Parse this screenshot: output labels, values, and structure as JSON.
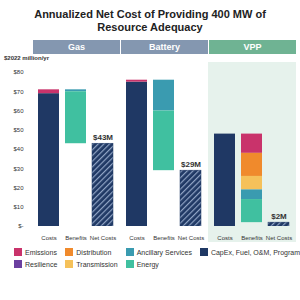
{
  "chart_data": {
    "type": "bar",
    "title": "Annualized Net Cost of Providing 400 MW of Resource Adequacy",
    "ylabel": "$2022 million/yr",
    "stacked": true,
    "panels": [
      "Gas",
      "Battery",
      "VPP"
    ],
    "categories": [
      "Costs",
      "Benefits",
      "Net Costs"
    ],
    "ylim": [
      0,
      80
    ],
    "yticks": [
      {
        "value": 0,
        "label": "$-"
      },
      {
        "value": 10,
        "label": "$10"
      },
      {
        "value": 20,
        "label": "$20"
      },
      {
        "value": 30,
        "label": "$30"
      },
      {
        "value": 40,
        "label": "$40"
      },
      {
        "value": 50,
        "label": "$50"
      },
      {
        "value": 60,
        "label": "$60"
      },
      {
        "value": 70,
        "label": "$70"
      },
      {
        "value": 80,
        "label": "$80"
      }
    ],
    "series": [
      {
        "name": "Emissions",
        "color": "#c9336b",
        "costs": [
          2,
          1,
          0
        ],
        "benefits": [
          0,
          0,
          10
        ]
      },
      {
        "name": "Resilience",
        "color": "#6b3fa0",
        "costs": [
          0,
          0,
          0
        ],
        "benefits": [
          0,
          0,
          0
        ]
      },
      {
        "name": "Distribution",
        "color": "#f08a2c",
        "costs": [
          0,
          0,
          0
        ],
        "benefits": [
          0,
          0,
          12
        ]
      },
      {
        "name": "Transmission",
        "color": "#f5c15a",
        "costs": [
          0,
          0,
          0
        ],
        "benefits": [
          0,
          0,
          7
        ]
      },
      {
        "name": "Ancillary Services",
        "color": "#3a9bb0",
        "costs": [
          0,
          0,
          0
        ],
        "benefits": [
          1,
          16,
          5
        ]
      },
      {
        "name": "Energy",
        "color": "#40c0a0",
        "costs": [
          0,
          0,
          0
        ],
        "benefits": [
          27,
          31,
          12
        ]
      },
      {
        "name": "CapEx, Fuel, O&M, Program Costs",
        "color": "#1f3864",
        "costs": [
          69,
          75,
          48
        ],
        "benefits": [
          0,
          0,
          0
        ]
      }
    ],
    "net_costs": {
      "color": "#1f3864",
      "values": [
        43,
        29,
        2
      ],
      "value_labels": [
        "$43M",
        "$29M",
        "$2M"
      ],
      "data_labels": true
    }
  }
}
